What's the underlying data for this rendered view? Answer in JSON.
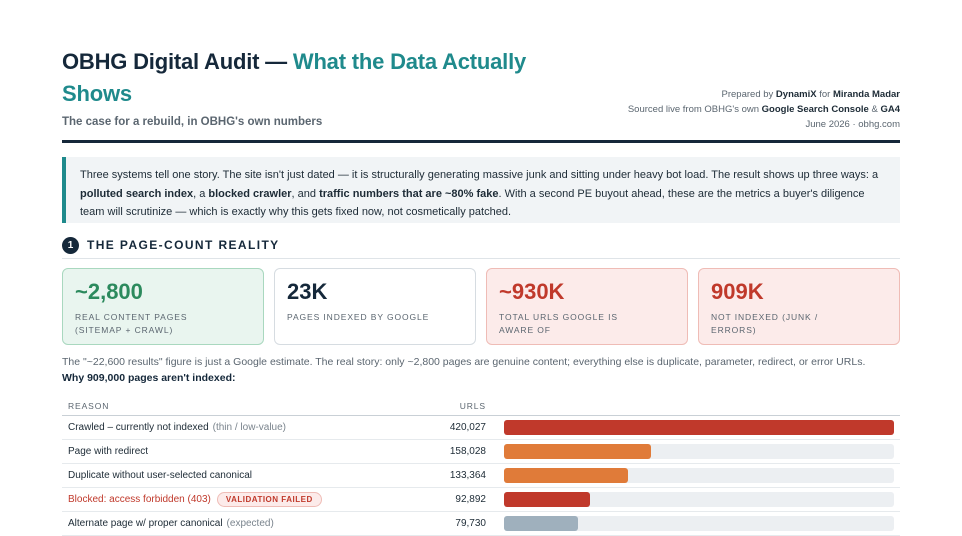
{
  "header": {
    "title_main": "OBHG Digital Audit — ",
    "title_accent": "What the Data Actually Shows",
    "subtitle": "The case for a rebuild, in OBHG's own numbers"
  },
  "meta": {
    "prepared_prefix": "Prepared by ",
    "prepared_by": "DynamiX",
    "for_word": " for ",
    "client": "Miranda Madar",
    "sourced_prefix": "Sourced live from OBHG's own ",
    "source_1": "Google Search Console",
    "amp": " & ",
    "source_2": "GA4",
    "date_line": "June 2026 · obhg.com"
  },
  "intro": {
    "p1": "Three systems tell one story. The site isn't just dated — it is structurally generating massive junk and sitting under heavy bot load. The result shows up three ways: a ",
    "b1": "polluted search index",
    "p2": ", a ",
    "b2": "blocked crawler",
    "p3": ", and ",
    "b3": "traffic numbers that are ~80% fake",
    "p4": ". With a second PE buyout ahead, these are the metrics a buyer's diligence team will scrutinize — which is exactly why this gets fixed now, not cosmetically patched."
  },
  "section": {
    "number": "1",
    "title": "THE PAGE-COUNT REALITY"
  },
  "cards": [
    {
      "value": "~2,800",
      "label": "REAL CONTENT PAGES (SITEMAP + CRAWL)"
    },
    {
      "value": "23K",
      "label": "PAGES INDEXED BY GOOGLE"
    },
    {
      "value": "~930K",
      "label": "TOTAL URLS GOOGLE IS AWARE OF"
    },
    {
      "value": "909K",
      "label": "NOT INDEXED (JUNK / ERRORS)"
    }
  ],
  "note": "The \"~22,600 results\" figure is just a Google estimate. The real story: only ~2,800 pages are genuine content; everything else is duplicate, parameter, redirect, or error URLs.",
  "table_heading": "Why 909,000 pages aren't indexed:",
  "table": {
    "col_reason": "REASON",
    "col_urls": "URLS",
    "max": 420027,
    "rows": [
      {
        "reason": "Crawled – currently not indexed",
        "paren": "(thin / low-value)",
        "urls": "420,027",
        "value": 420027,
        "color": "#c0392b"
      },
      {
        "reason": "Page with redirect",
        "paren": "",
        "urls": "158,028",
        "value": 158028,
        "color": "#e07b39"
      },
      {
        "reason": "Duplicate without user-selected canonical",
        "paren": "",
        "urls": "133,364",
        "value": 133364,
        "color": "#e07b39"
      },
      {
        "reason": "Blocked: access forbidden (403)",
        "paren": "",
        "badge": "VALIDATION FAILED",
        "urls": "92,892",
        "value": 92892,
        "color": "#c0392b"
      },
      {
        "reason": "Alternate page w/ proper canonical",
        "paren": "(expected)",
        "urls": "79,730",
        "value": 79730,
        "color": "#9fb0bd"
      }
    ]
  }
}
